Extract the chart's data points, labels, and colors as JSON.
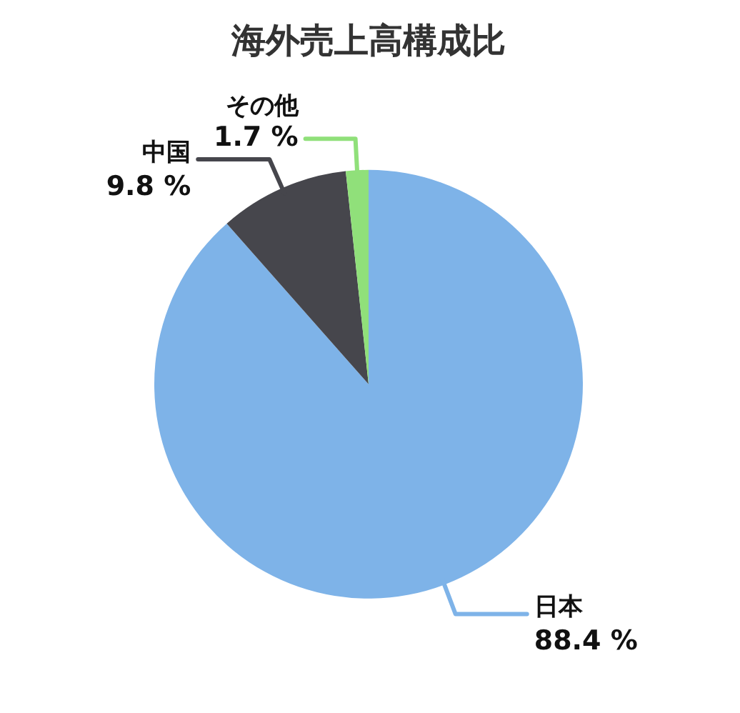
{
  "chart_data": {
    "type": "pie",
    "title": "海外売上高構成比",
    "categories": [
      "日本",
      "中国",
      "その他"
    ],
    "values": [
      88.4,
      9.8,
      1.7
    ],
    "colors": [
      "#7eb3e8",
      "#46464c",
      "#90e07a"
    ],
    "value_labels": [
      "88.4 %",
      "9.8 %",
      "1.7 %"
    ],
    "legend": false
  }
}
